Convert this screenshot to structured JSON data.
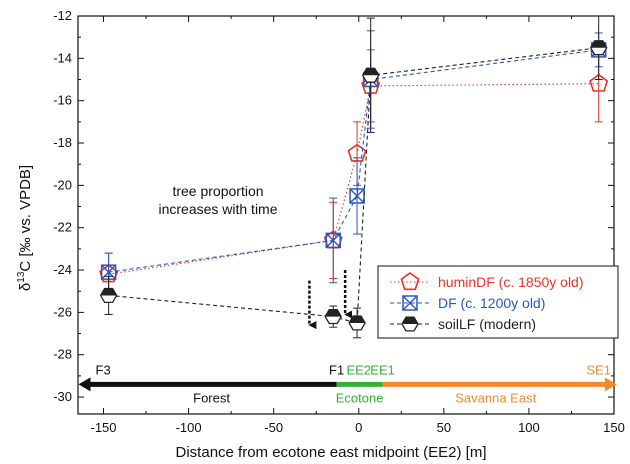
{
  "chart_data": {
    "type": "scatter",
    "xlabel": "Distance from ecotone east midpoint (EE2) [m]",
    "ylabel": "δ13C [‰ vs. VPDB]",
    "ylabel_parts": {
      "delta": "δ",
      "sup": "13",
      "rest": "C [‰ vs. VPDB]"
    },
    "xlim": [
      -165,
      150
    ],
    "ylim": [
      -30.8,
      -12
    ],
    "xticks": [
      -150,
      -100,
      -50,
      0,
      50,
      100,
      150
    ],
    "yticks": [
      -30,
      -28,
      -26,
      -24,
      -22,
      -20,
      -18,
      -16,
      -14,
      -12
    ],
    "xtick_labels": [
      "-150",
      "-100",
      "-50",
      "0",
      "50",
      "100",
      "150"
    ],
    "ytick_labels": [
      "-30",
      "-28",
      "-26",
      "-24",
      "-22",
      "-20",
      "-18",
      "-16",
      "-14",
      "-12"
    ],
    "series": [
      {
        "name": "huminDF (c. 1850y old)",
        "color": "#e8332a",
        "marker": "pentagon",
        "line": "dotted",
        "points": [
          {
            "x": -147,
            "y": -24.2,
            "err": 1.0
          },
          {
            "x": -15,
            "y": -22.6,
            "err": 1.8
          },
          {
            "x": -1,
            "y": -18.5,
            "err": 1.5
          },
          {
            "x": 7,
            "y": -15.3,
            "err": 1.7
          },
          {
            "x": 141,
            "y": -15.2,
            "err": 1.8
          }
        ]
      },
      {
        "name": "DF (c. 1200y old)",
        "color": "#2b55c0",
        "marker": "boxed-x",
        "line": "dashed",
        "points": [
          {
            "x": -147,
            "y": -24.1,
            "err": 0.9
          },
          {
            "x": -15,
            "y": -22.6,
            "err": 2.0
          },
          {
            "x": -1,
            "y": -20.5,
            "err": 1.8
          },
          {
            "x": 7,
            "y": -15.0,
            "err": 2.3
          },
          {
            "x": 141,
            "y": -13.6,
            "err": 0.8
          }
        ]
      },
      {
        "name": "soilLF (modern)",
        "color": "#222222",
        "marker": "hexagon-half",
        "line": "dashed",
        "points": [
          {
            "x": -147,
            "y": -25.2,
            "err": 0.9
          },
          {
            "x": -15,
            "y": -26.2,
            "err": 0.5
          },
          {
            "x": -1,
            "y": -26.5,
            "err": 0.7
          },
          {
            "x": 7,
            "y": -14.8,
            "err": 2.7
          },
          {
            "x": 141,
            "y": -13.5,
            "err": 1.5
          }
        ]
      }
    ],
    "annotations": {
      "note_line1": "tree proportion",
      "note_line2": "increases with time",
      "arrows": [
        {
          "x": -29,
          "y_from": -24.5,
          "y_to": -26.6
        },
        {
          "x": -8,
          "y_from": -24.0,
          "y_to": -26.1
        }
      ]
    },
    "transect": {
      "y": -29.4,
      "markers": [
        {
          "label": "F3",
          "x": -150,
          "color": "#111111"
        },
        {
          "label": "F1",
          "x": -13,
          "color": "#111111"
        },
        {
          "label": "EE2",
          "x": 0,
          "color": "#33b233"
        },
        {
          "label": "EE1",
          "x": 14,
          "color": "#33b233"
        },
        {
          "label": "SE1",
          "x": 141,
          "color": "#f08a2a"
        }
      ],
      "zones": [
        {
          "label": "Forest",
          "x_from": -160,
          "x_to": -13,
          "color": "#111111"
        },
        {
          "label": "Ecotone",
          "x_from": -13,
          "x_to": 14,
          "color": "#33b233"
        },
        {
          "label": "Savanna East",
          "x_from": 14,
          "x_to": 147,
          "color": "#f08a2a"
        }
      ]
    },
    "legend_position": "lower-right"
  }
}
